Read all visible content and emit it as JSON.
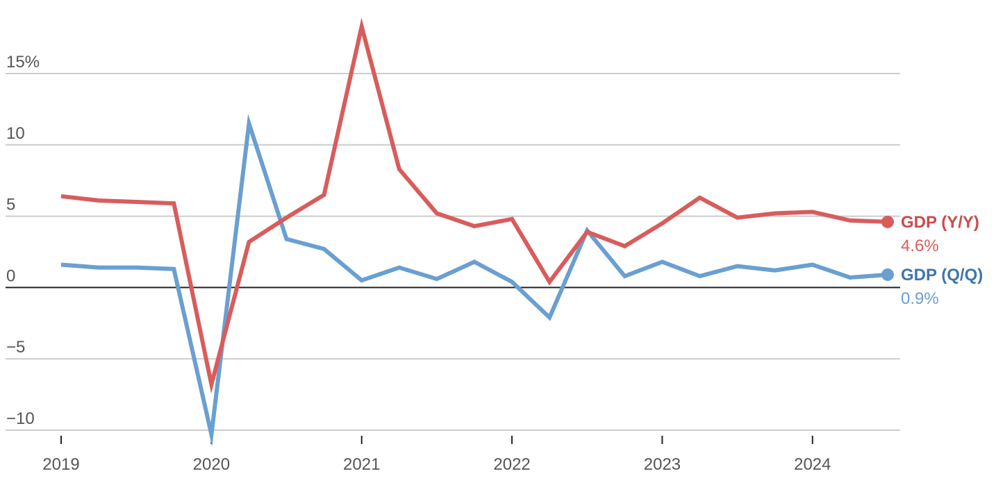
{
  "chart_data": {
    "type": "line",
    "x": [
      2019.0,
      2019.25,
      2019.5,
      2019.75,
      2020.0,
      2020.25,
      2020.5,
      2020.75,
      2021.0,
      2021.25,
      2021.5,
      2021.75,
      2022.0,
      2022.25,
      2022.5,
      2022.75,
      2023.0,
      2023.25,
      2023.5,
      2023.75,
      2024.0,
      2024.25,
      2024.5
    ],
    "xticks": [
      2019,
      2020,
      2021,
      2022,
      2023,
      2024
    ],
    "xtick_labels": [
      "2019",
      "2020",
      "2021",
      "2022",
      "2023",
      "2024"
    ],
    "xlim": [
      2018.98,
      2024.55
    ],
    "yticks": [
      -10,
      -5,
      0,
      5,
      10,
      15
    ],
    "ytick_labels": [
      "−10",
      "−5",
      "0",
      "5",
      "10",
      "15%"
    ],
    "ylim": [
      -10.4,
      18.8
    ],
    "grid": true,
    "series": [
      {
        "name": "GDP (Y/Y)",
        "color": "#d95c5c",
        "label_color": "#c94b4b",
        "value_label": "4.6%",
        "values": [
          6.4,
          6.1,
          6.0,
          5.9,
          -6.8,
          3.2,
          4.9,
          6.5,
          18.3,
          8.3,
          5.2,
          4.3,
          4.8,
          0.4,
          3.9,
          2.9,
          4.5,
          6.3,
          4.9,
          5.2,
          5.3,
          4.7,
          4.6
        ]
      },
      {
        "name": "GDP (Q/Q)",
        "color": "#6a9fd1",
        "label_color": "#3f75ad",
        "value_label": "0.9%",
        "values": [
          1.6,
          1.4,
          1.4,
          1.3,
          -10.3,
          11.5,
          3.4,
          2.7,
          0.5,
          1.4,
          0.6,
          1.8,
          0.4,
          -2.1,
          4.0,
          0.8,
          1.8,
          0.8,
          1.5,
          1.2,
          1.6,
          0.7,
          0.9
        ]
      }
    ]
  }
}
